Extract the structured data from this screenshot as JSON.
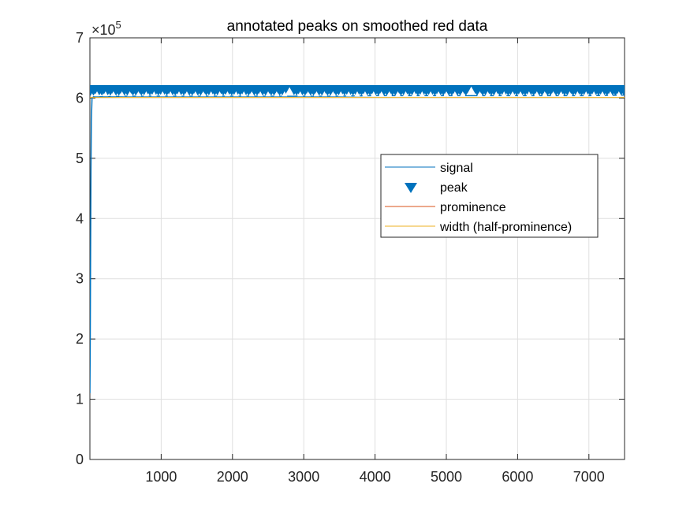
{
  "chart_data": {
    "type": "line",
    "title": "annotated peaks on smoothed red data",
    "xlabel": "",
    "ylabel": "",
    "xlim": [
      0,
      7500
    ],
    "ylim": [
      0,
      7
    ],
    "y_exponent_base": "×10",
    "y_exponent": "5",
    "x_ticks": [
      1000,
      2000,
      3000,
      4000,
      5000,
      6000,
      7000
    ],
    "x_tick_labels": [
      "1000",
      "2000",
      "3000",
      "4000",
      "5000",
      "6000",
      "7000"
    ],
    "y_ticks": [
      0,
      1,
      2,
      3,
      4,
      5,
      6,
      7
    ],
    "y_tick_labels": [
      "0",
      "1",
      "2",
      "3",
      "4",
      "5",
      "6",
      "7"
    ],
    "grid": true,
    "legend_position": "right",
    "series": [
      {
        "name": "signal",
        "kind": "line",
        "color": "#0072BD",
        "x": [
          0,
          5,
          10,
          15,
          20,
          30,
          50,
          100,
          500,
          1000,
          1500,
          2000,
          2500,
          3000,
          3500,
          4000,
          4500,
          5000,
          5500,
          6000,
          6500,
          7000,
          7500
        ],
        "y": [
          1.1,
          2.0,
          3.5,
          4.8,
          5.6,
          6.0,
          6.02,
          6.02,
          6.03,
          6.03,
          6.03,
          6.03,
          6.03,
          6.03,
          6.03,
          6.04,
          6.04,
          6.04,
          6.04,
          6.04,
          6.04,
          6.04,
          6.05
        ]
      },
      {
        "name": "peak",
        "kind": "markers",
        "marker": "down-triangle",
        "color": "#0072BD",
        "x_start": 10,
        "x_end": 7490,
        "count": 190,
        "y": 6.13
      },
      {
        "name": "prominence",
        "kind": "line",
        "color": "#D95319"
      },
      {
        "name": "width (half-prominence)",
        "kind": "line",
        "color": "#EDB120",
        "y": 6.01
      }
    ],
    "white_markers": {
      "color": "#ffffff",
      "y": 6.07,
      "highlighted": [
        {
          "x": 2800,
          "y": 6.11
        },
        {
          "x": 5350,
          "y": 6.12
        }
      ],
      "x": [
        100,
        220,
        330,
        450,
        560,
        680,
        790,
        900,
        1020,
        1130,
        1250,
        1360,
        1480,
        1590,
        1700,
        1820,
        1930,
        2050,
        2160,
        2270,
        2390,
        2500,
        2620,
        2730,
        2950,
        3060,
        3180,
        3290,
        3410,
        3520,
        3630,
        3750,
        3860,
        3980,
        4090,
        4200,
        4320,
        4430,
        4550,
        4660,
        4780,
        4890,
        5000,
        5120,
        5230,
        5470,
        5580,
        5700,
        5810,
        5930,
        6040,
        6160,
        6270,
        6380,
        6500,
        6610,
        6730,
        6840,
        6960,
        7070,
        7190,
        7300,
        7420
      ]
    }
  }
}
